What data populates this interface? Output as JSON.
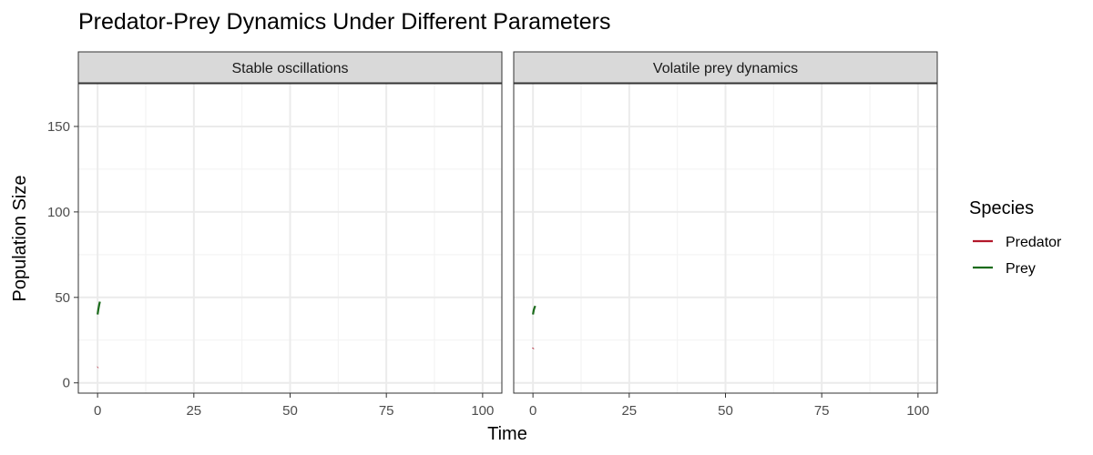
{
  "chart_data": {
    "type": "line",
    "title": "Predator-Prey Dynamics Under Different Parameters",
    "xlabel": "Time",
    "ylabel": "Population Size",
    "xlim": [
      -5,
      105
    ],
    "ylim": [
      -6,
      175
    ],
    "x_ticks": [
      0,
      25,
      50,
      75,
      100
    ],
    "y_ticks": [
      0,
      50,
      100,
      150
    ],
    "grid": true,
    "legend": {
      "title": "Species",
      "placement": "right",
      "entries": [
        {
          "label": "Predator",
          "color": "#b2182b"
        },
        {
          "label": "Prey",
          "color": "#1b6b1b"
        }
      ]
    },
    "panels": [
      {
        "strip": "Stable oscillations",
        "series": [
          {
            "name": "Predator",
            "color": "#b2182b",
            "x": [
              0,
              0.05,
              0.1
            ],
            "y": [
              9,
              9.1,
              9.2
            ]
          },
          {
            "name": "Prey",
            "color": "#1b6b1b",
            "x": [
              0,
              0.2,
              0.4,
              0.6
            ],
            "y": [
              40,
              43,
              45.5,
              47.5
            ]
          }
        ]
      },
      {
        "strip": "Volatile prey dynamics",
        "series": [
          {
            "name": "Predator",
            "color": "#b2182b",
            "x": [
              0,
              0.05,
              0.1
            ],
            "y": [
              20,
              20.2,
              20.4
            ]
          },
          {
            "name": "Prey",
            "color": "#1b6b1b",
            "x": [
              0,
              0.2,
              0.4,
              0.6
            ],
            "y": [
              40,
              42.5,
              44,
              45
            ]
          }
        ]
      }
    ]
  }
}
